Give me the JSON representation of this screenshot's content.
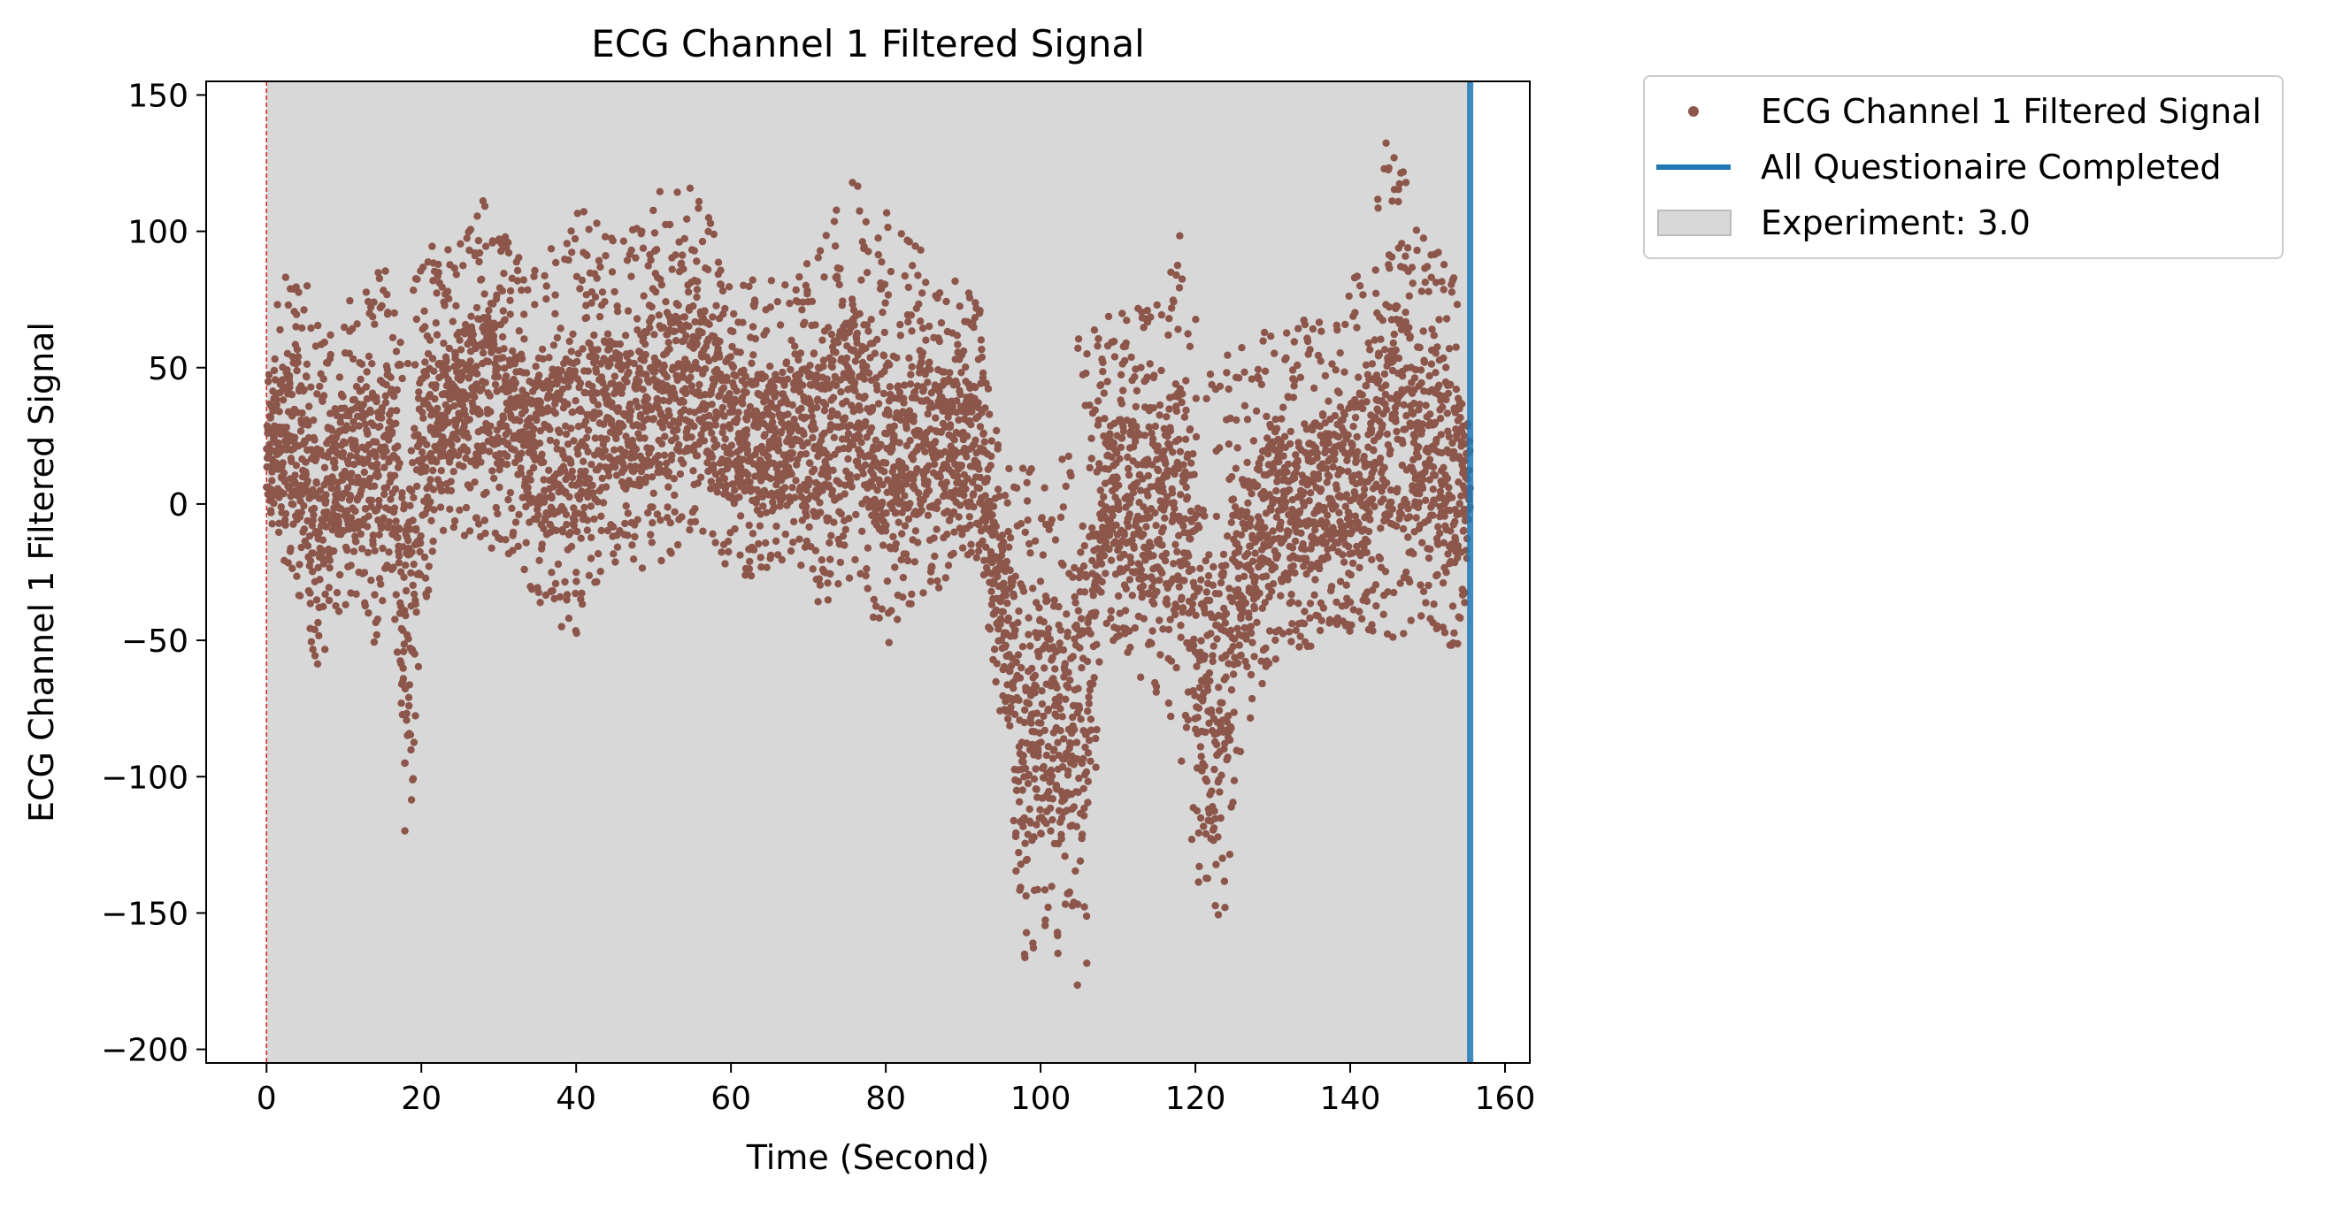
{
  "chart_data": {
    "type": "scatter",
    "title": "ECG Channel 1 Filtered Signal",
    "xlabel": "Time (Second)",
    "ylabel": "ECG Channel 1 Filtered Signal",
    "xlim": [
      -7.8,
      163.2
    ],
    "ylim": [
      -205,
      155
    ],
    "xticks": [
      0,
      20,
      40,
      60,
      80,
      100,
      120,
      140,
      160
    ],
    "yticks": [
      150,
      100,
      50,
      0,
      -50,
      -100,
      -150,
      -200
    ],
    "xtick_labels": [
      "0",
      "20",
      "40",
      "60",
      "80",
      "100",
      "120",
      "140",
      "160"
    ],
    "ytick_labels": [
      "150",
      "100",
      "50",
      "0",
      "−50",
      "−100",
      "−150",
      "−200"
    ],
    "grid": false,
    "legend_position": "outside-top-right",
    "series": [
      {
        "name": "ECG Channel 1 Filtered Signal",
        "kind": "points",
        "color": "#8c564b",
        "envelope": {
          "t": [
            0,
            2,
            4,
            6,
            7,
            9,
            12,
            14,
            16,
            17,
            18,
            19,
            20,
            24,
            28,
            32,
            36,
            40,
            44,
            48,
            52,
            56,
            60,
            64,
            68,
            72,
            76,
            80,
            84,
            88,
            92,
            94,
            96,
            98,
            100,
            102,
            104,
            105,
            106,
            108,
            112,
            116,
            118,
            120,
            122,
            123,
            124,
            126,
            130,
            134,
            138,
            142,
            145,
            150,
            154,
            155.5
          ],
          "low": [
            0,
            -20,
            -35,
            -55,
            -63,
            -40,
            -35,
            -52,
            -20,
            -60,
            -136,
            -100,
            -40,
            -10,
            -15,
            -20,
            -40,
            -50,
            -20,
            -25,
            -20,
            -10,
            -25,
            -30,
            -20,
            -40,
            -25,
            -55,
            -35,
            -30,
            -20,
            -60,
            -110,
            -180,
            -150,
            -170,
            -160,
            -185,
            -170,
            -45,
            -60,
            -80,
            -100,
            -130,
            -175,
            -185,
            -140,
            -90,
            -60,
            -55,
            -45,
            -50,
            -50,
            -45,
            -55,
            -20
          ],
          "high": [
            45,
            85,
            95,
            75,
            60,
            80,
            75,
            90,
            85,
            70,
            60,
            80,
            100,
            95,
            112,
            95,
            90,
            110,
            100,
            105,
            120,
            115,
            88,
            85,
            80,
            100,
            120,
            110,
            95,
            85,
            75,
            30,
            20,
            15,
            10,
            15,
            25,
            65,
            60,
            70,
            75,
            85,
            118,
            90,
            55,
            50,
            55,
            60,
            65,
            70,
            72,
            90,
            140,
            100,
            90,
            20
          ]
        }
      },
      {
        "name": "All Questionaire Completed",
        "kind": "vline",
        "x": 155.5,
        "color": "#1f77b4"
      },
      {
        "name": "Experiment: 3.0",
        "kind": "span",
        "x_start": 0,
        "x_end": 155.5,
        "color": "#d8d8d8"
      }
    ],
    "annotations": [
      {
        "kind": "dashed-vline",
        "x": 0,
        "color": "#d62728"
      }
    ]
  }
}
